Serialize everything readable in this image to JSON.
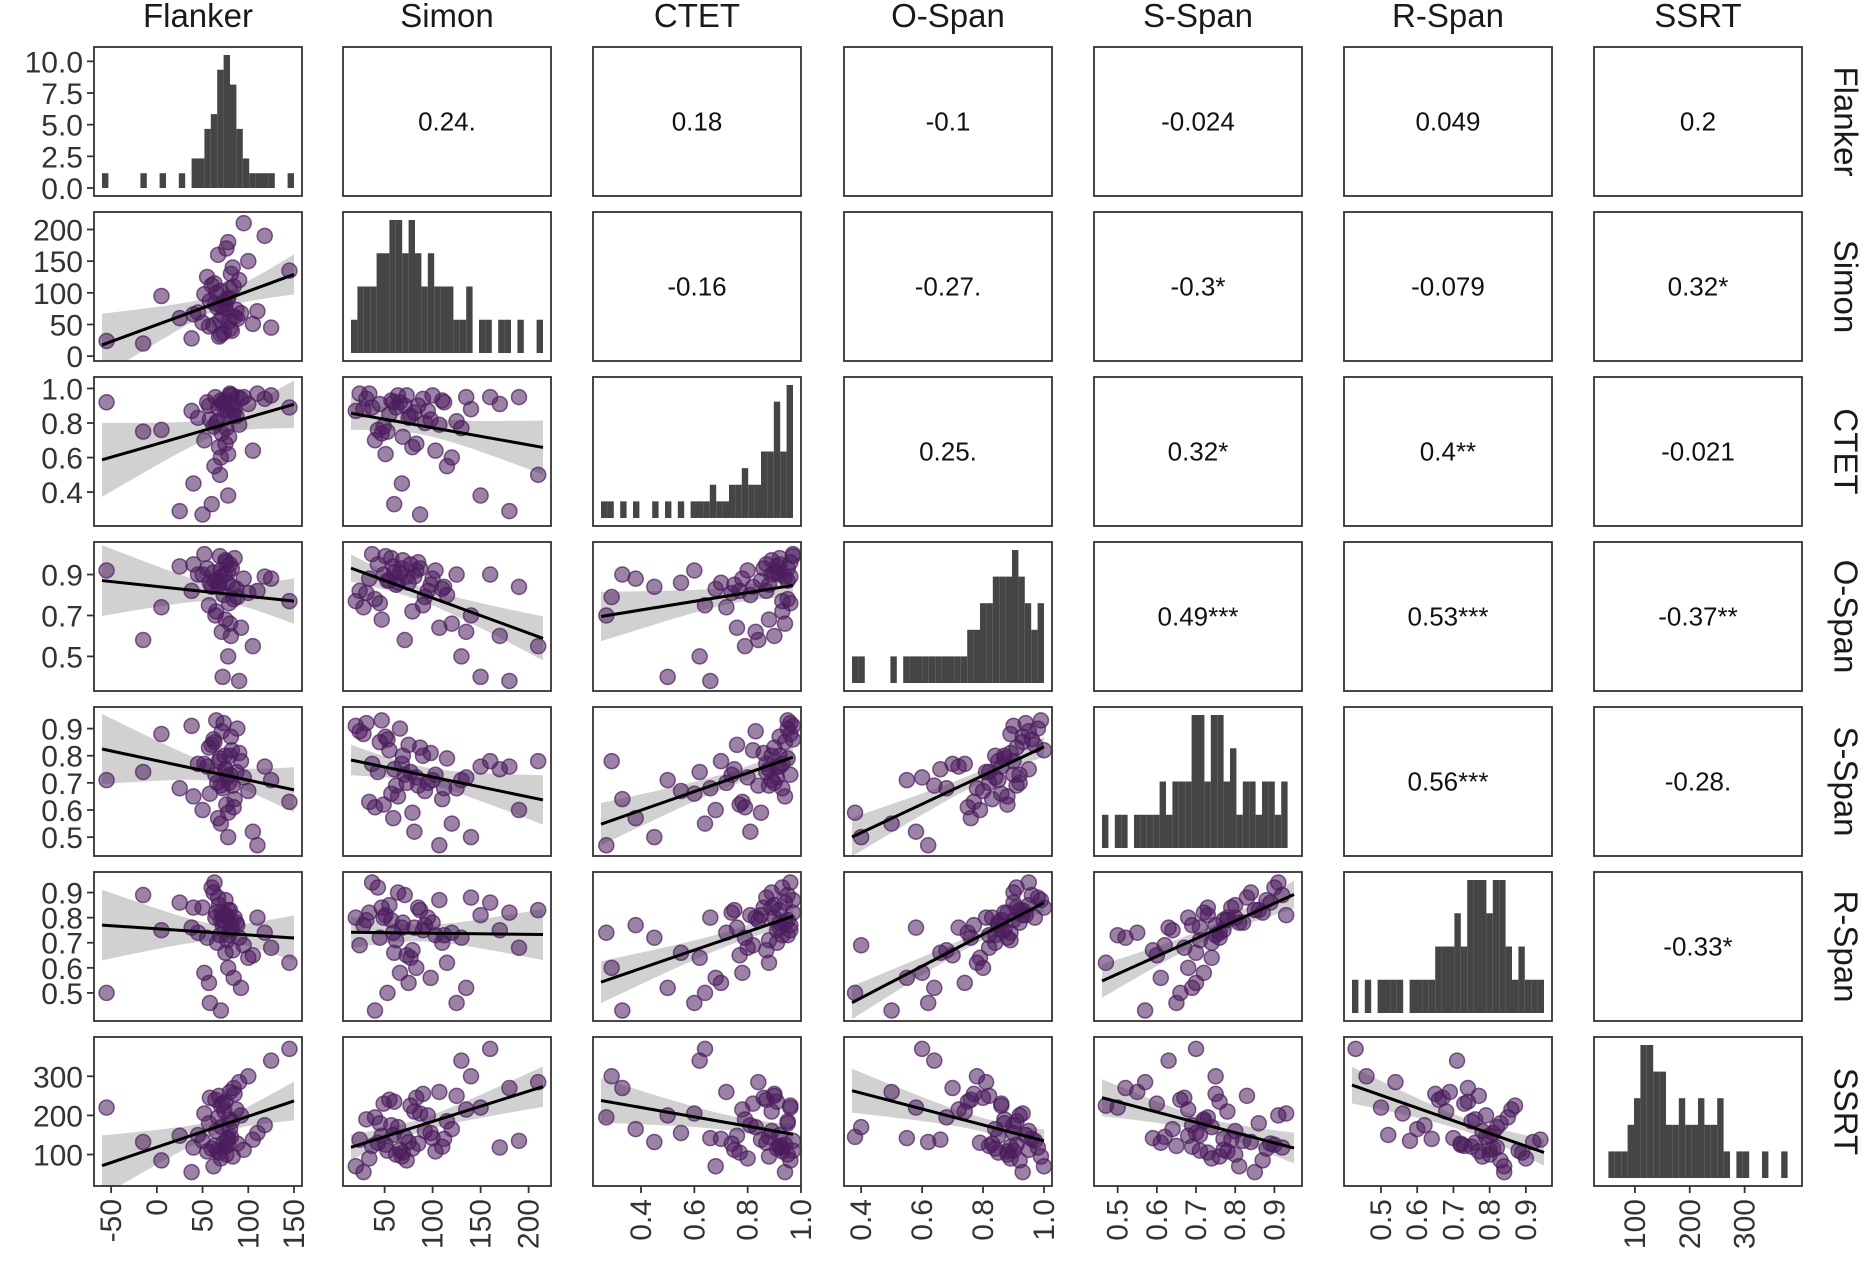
{
  "chart_data": {
    "type": "scatter-matrix",
    "variables": [
      "Flanker",
      "Simon",
      "CTET",
      "O-Span",
      "S-Span",
      "R-Span",
      "SSRT"
    ],
    "correlations": {
      "Simon|Flanker": "0.24.",
      "CTET|Flanker": "0.18",
      "O-Span|Flanker": "-0.1",
      "S-Span|Flanker": "-0.024",
      "R-Span|Flanker": "0.049",
      "SSRT|Flanker": "0.2",
      "CTET|Simon": "-0.16",
      "O-Span|Simon": "-0.27.",
      "S-Span|Simon": "-0.3*",
      "R-Span|Simon": "-0.079",
      "SSRT|Simon": "0.32*",
      "O-Span|CTET": "0.25.",
      "S-Span|CTET": "0.32*",
      "R-Span|CTET": "0.4**",
      "SSRT|CTET": "-0.021",
      "S-Span|O-Span": "0.49***",
      "R-Span|O-Span": "0.53***",
      "SSRT|O-Span": "-0.37**",
      "R-Span|S-Span": "0.56***",
      "SSRT|S-Span": "-0.28.",
      "SSRT|R-Span": "-0.33*"
    },
    "x_axes": {
      "Flanker": {
        "range": [
          -60,
          150
        ],
        "ticks": [
          "-50",
          "0",
          "50",
          "100",
          "150"
        ],
        "tick_values": [
          -50,
          0,
          50,
          100,
          150
        ]
      },
      "Simon": {
        "range": [
          15,
          215
        ],
        "ticks": [
          "50",
          "100",
          "150",
          "200"
        ],
        "tick_values": [
          50,
          100,
          150,
          200
        ]
      },
      "CTET": {
        "range": [
          0.25,
          0.97
        ],
        "ticks": [
          "0.4",
          "0.6",
          "0.8",
          "1.0"
        ],
        "tick_values": [
          0.4,
          0.6,
          0.8,
          1.0
        ]
      },
      "O-Span": {
        "range": [
          0.37,
          1.0
        ],
        "ticks": [
          "0.4",
          "0.6",
          "0.8",
          "1.0"
        ],
        "tick_values": [
          0.4,
          0.6,
          0.8,
          1.0
        ]
      },
      "S-Span": {
        "range": [
          0.46,
          0.95
        ],
        "ticks": [
          "0.5",
          "0.6",
          "0.7",
          "0.8",
          "0.9"
        ],
        "tick_values": [
          0.5,
          0.6,
          0.7,
          0.8,
          0.9
        ]
      },
      "R-Span": {
        "range": [
          0.42,
          0.95
        ],
        "ticks": [
          "0.5",
          "0.6",
          "0.7",
          "0.8",
          "0.9"
        ],
        "tick_values": [
          0.5,
          0.6,
          0.7,
          0.8,
          0.9
        ]
      },
      "SSRT": {
        "range": [
          40,
          390
        ],
        "ticks": [
          "100",
          "200",
          "300"
        ],
        "tick_values": [
          100,
          200,
          300
        ]
      }
    },
    "y_axes": {
      "Flanker": {
        "range": [
          0,
          10.5
        ],
        "ticks": [
          "0.0",
          "2.5",
          "5.0",
          "7.5",
          "10.0"
        ],
        "tick_values": [
          0,
          2.5,
          5,
          7.5,
          10
        ],
        "note": "histogram counts"
      },
      "Simon": {
        "range": [
          5,
          215
        ],
        "ticks": [
          "0",
          "50",
          "100",
          "150",
          "200"
        ],
        "tick_values": [
          0,
          50,
          100,
          150,
          200
        ]
      },
      "CTET": {
        "range": [
          0.25,
          1.02
        ],
        "ticks": [
          "0.4",
          "0.6",
          "0.8",
          "1.0"
        ],
        "tick_values": [
          0.4,
          0.6,
          0.8,
          1.0
        ]
      },
      "O-Span": {
        "range": [
          0.37,
          1.02
        ],
        "ticks": [
          "0.5",
          "0.7",
          "0.9"
        ],
        "tick_values": [
          0.5,
          0.7,
          0.9
        ]
      },
      "S-Span": {
        "range": [
          0.46,
          0.95
        ],
        "ticks": [
          "0.5",
          "0.6",
          "0.7",
          "0.8",
          "0.9"
        ],
        "tick_values": [
          0.5,
          0.6,
          0.7,
          0.8,
          0.9
        ]
      },
      "R-Span": {
        "range": [
          0.42,
          0.95
        ],
        "ticks": [
          "0.5",
          "0.6",
          "0.7",
          "0.8",
          "0.9"
        ],
        "tick_values": [
          0.5,
          0.6,
          0.7,
          0.8,
          0.9
        ]
      },
      "SSRT": {
        "range": [
          40,
          380
        ],
        "ticks": [
          "100",
          "200",
          "300"
        ],
        "tick_values": [
          100,
          200,
          300
        ]
      }
    },
    "observations": {
      "Flanker": [
        -55,
        -15,
        5,
        25,
        38,
        40,
        45,
        50,
        52,
        55,
        57,
        58,
        60,
        62,
        63,
        64,
        65,
        66,
        67,
        68,
        69,
        70,
        70,
        71,
        72,
        73,
        74,
        75,
        75,
        76,
        77,
        78,
        78,
        79,
        80,
        80,
        81,
        82,
        83,
        84,
        85,
        87,
        88,
        90,
        92,
        95,
        100,
        105,
        110,
        118,
        125,
        145
      ],
      "Simon": [
        20,
        24,
        28,
        31,
        34,
        37,
        40,
        43,
        45,
        47,
        49,
        51,
        53,
        55,
        57,
        59,
        60,
        62,
        64,
        66,
        68,
        69,
        71,
        73,
        75,
        77,
        79,
        81,
        83,
        85,
        87,
        90,
        92,
        95,
        98,
        100,
        103,
        107,
        110,
        112,
        115,
        120,
        125,
        130,
        135,
        140,
        150,
        160,
        170,
        180,
        190,
        210
      ],
      "CTET": [
        0.27,
        0.29,
        0.33,
        0.38,
        0.45,
        0.5,
        0.55,
        0.6,
        0.62,
        0.64,
        0.66,
        0.68,
        0.7,
        0.72,
        0.74,
        0.75,
        0.76,
        0.77,
        0.78,
        0.79,
        0.8,
        0.81,
        0.82,
        0.83,
        0.84,
        0.85,
        0.86,
        0.87,
        0.87,
        0.88,
        0.88,
        0.89,
        0.89,
        0.9,
        0.9,
        0.91,
        0.91,
        0.92,
        0.92,
        0.92,
        0.93,
        0.93,
        0.94,
        0.94,
        0.95,
        0.95,
        0.95,
        0.96,
        0.96,
        0.96,
        0.97,
        0.97
      ],
      "O-Span": [
        0.38,
        0.4,
        0.5,
        0.55,
        0.58,
        0.6,
        0.62,
        0.64,
        0.66,
        0.68,
        0.7,
        0.72,
        0.74,
        0.75,
        0.76,
        0.77,
        0.78,
        0.79,
        0.8,
        0.81,
        0.82,
        0.82,
        0.83,
        0.84,
        0.84,
        0.85,
        0.85,
        0.86,
        0.86,
        0.87,
        0.87,
        0.88,
        0.88,
        0.89,
        0.89,
        0.9,
        0.9,
        0.9,
        0.91,
        0.91,
        0.92,
        0.92,
        0.93,
        0.93,
        0.94,
        0.95,
        0.95,
        0.96,
        0.97,
        0.98,
        0.99,
        1.0
      ],
      "S-Span": [
        0.47,
        0.5,
        0.52,
        0.55,
        0.57,
        0.59,
        0.6,
        0.61,
        0.62,
        0.63,
        0.64,
        0.65,
        0.66,
        0.67,
        0.68,
        0.68,
        0.69,
        0.69,
        0.7,
        0.7,
        0.71,
        0.71,
        0.72,
        0.72,
        0.73,
        0.73,
        0.74,
        0.74,
        0.75,
        0.75,
        0.76,
        0.76,
        0.77,
        0.77,
        0.78,
        0.78,
        0.79,
        0.8,
        0.8,
        0.81,
        0.82,
        0.83,
        0.84,
        0.85,
        0.86,
        0.87,
        0.88,
        0.89,
        0.9,
        0.91,
        0.92,
        0.93
      ],
      "R-Span": [
        0.43,
        0.46,
        0.5,
        0.52,
        0.54,
        0.56,
        0.58,
        0.6,
        0.62,
        0.64,
        0.65,
        0.66,
        0.67,
        0.68,
        0.69,
        0.7,
        0.71,
        0.72,
        0.72,
        0.73,
        0.73,
        0.74,
        0.74,
        0.75,
        0.75,
        0.76,
        0.76,
        0.77,
        0.77,
        0.78,
        0.78,
        0.79,
        0.79,
        0.8,
        0.8,
        0.8,
        0.81,
        0.81,
        0.82,
        0.82,
        0.83,
        0.83,
        0.84,
        0.84,
        0.85,
        0.86,
        0.87,
        0.88,
        0.89,
        0.9,
        0.92,
        0.94
      ],
      "SSRT": [
        55,
        70,
        85,
        90,
        95,
        100,
        105,
        108,
        110,
        112,
        115,
        118,
        120,
        122,
        125,
        128,
        130,
        132,
        135,
        138,
        140,
        142,
        145,
        148,
        150,
        155,
        160,
        165,
        170,
        175,
        180,
        185,
        190,
        195,
        200,
        205,
        210,
        215,
        220,
        225,
        230,
        235,
        240,
        245,
        250,
        255,
        260,
        270,
        285,
        300,
        340,
        370
      ]
    }
  }
}
